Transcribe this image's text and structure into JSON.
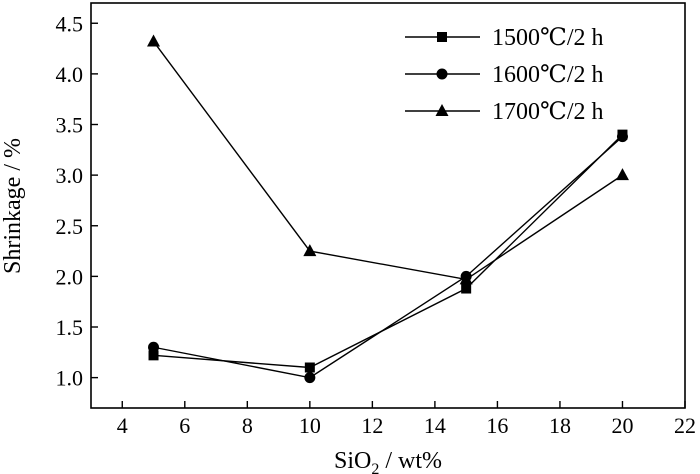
{
  "chart_data": {
    "type": "line",
    "xlabel": "SiO",
    "xlabel_sub": "2",
    "xlabel_unit": " / wt%",
    "ylabel": "Shrinkage / %",
    "xlim": [
      3,
      22
    ],
    "ylim": [
      0.7,
      4.7
    ],
    "xticks": [
      4,
      6,
      8,
      10,
      12,
      14,
      16,
      18,
      20,
      22
    ],
    "xtick_labels": [
      "4",
      "6",
      "8",
      "10",
      "12",
      "14",
      "16",
      "18",
      "20",
      "22"
    ],
    "yticks": [
      1.0,
      1.5,
      2.0,
      2.5,
      3.0,
      3.5,
      4.0,
      4.5
    ],
    "ytick_labels": [
      "1.0",
      "1.5",
      "2.0",
      "2.5",
      "3.0",
      "3.5",
      "4.0",
      "4.5"
    ],
    "grid": false,
    "legend_position": "top-right",
    "x": [
      5,
      10,
      15,
      20
    ],
    "series": [
      {
        "name": "1500℃/2 h",
        "marker": "square",
        "values": [
          1.22,
          1.1,
          1.88,
          3.4
        ]
      },
      {
        "name": "1600℃/2 h",
        "marker": "circle",
        "values": [
          1.3,
          1.0,
          2.0,
          3.38
        ]
      },
      {
        "name": "1700℃/2 h",
        "marker": "triangle",
        "values": [
          4.32,
          2.25,
          1.97,
          3.0
        ]
      }
    ]
  }
}
